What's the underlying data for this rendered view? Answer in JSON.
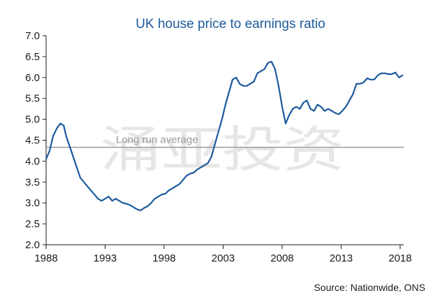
{
  "chart_data": {
    "type": "line",
    "title": "UK house price to earnings ratio",
    "xlabel": "",
    "ylabel": "",
    "x_tick_labels": [
      "1988",
      "1993",
      "1998",
      "2003",
      "2008",
      "2013",
      "2018"
    ],
    "y_tick_labels": [
      "2.0",
      "2.5",
      "3.0",
      "3.5",
      "4.0",
      "4.5",
      "5.0",
      "5.5",
      "6.0",
      "6.5",
      "7.0"
    ],
    "xlim": [
      1988,
      2018.3
    ],
    "ylim": [
      2.0,
      7.0
    ],
    "grid": false,
    "reference_line": {
      "label": "Long run average",
      "value": 4.33
    },
    "source": "Source: Nationwide, ONS",
    "watermark": "涌亚投资",
    "colors": {
      "series": "#1b5a9c",
      "reference": "#9a9a9a",
      "title": "#1b5a9c"
    },
    "series": [
      {
        "x": [
          1988.0,
          1988.3,
          1988.6,
          1988.9,
          1989.2,
          1989.5,
          1989.7,
          1990.0,
          1990.3,
          1990.6,
          1990.9,
          1991.2,
          1991.5,
          1991.8,
          1992.1,
          1992.4,
          1992.7,
          1993.0,
          1993.3,
          1993.6,
          1993.9,
          1994.2,
          1994.5,
          1994.8,
          1995.1,
          1995.4,
          1995.7,
          1996.0,
          1996.3,
          1996.6,
          1996.9,
          1997.2,
          1997.5,
          1997.8,
          1998.1,
          1998.4,
          1998.7,
          1999.0,
          1999.3,
          1999.6,
          1999.9,
          2000.2,
          2000.5,
          2000.8,
          2001.1,
          2001.4,
          2001.7,
          2002.0,
          2002.3,
          2002.6,
          2002.9,
          2003.2,
          2003.5,
          2003.8,
          2004.1,
          2004.4,
          2004.7,
          2005.0,
          2005.3,
          2005.6,
          2005.9,
          2006.2,
          2006.5,
          2006.8,
          2007.1,
          2007.4,
          2007.7,
          2008.0,
          2008.3,
          2008.6,
          2008.9,
          2009.2,
          2009.5,
          2009.8,
          2010.1,
          2010.4,
          2010.7,
          2011.0,
          2011.3,
          2011.6,
          2011.9,
          2012.2,
          2012.5,
          2012.8,
          2013.1,
          2013.4,
          2013.7,
          2014.0,
          2014.3,
          2014.6,
          2014.9,
          2015.2,
          2015.5,
          2015.8,
          2016.1,
          2016.4,
          2016.7,
          2017.0,
          2017.3,
          2017.6,
          2017.9,
          2018.2
        ],
        "values": [
          4.05,
          4.25,
          4.6,
          4.78,
          4.9,
          4.85,
          4.6,
          4.35,
          4.1,
          3.85,
          3.6,
          3.5,
          3.4,
          3.3,
          3.2,
          3.1,
          3.05,
          3.1,
          3.15,
          3.05,
          3.1,
          3.05,
          3.0,
          2.98,
          2.95,
          2.9,
          2.85,
          2.82,
          2.88,
          2.92,
          3.0,
          3.1,
          3.15,
          3.2,
          3.22,
          3.3,
          3.35,
          3.4,
          3.45,
          3.55,
          3.65,
          3.7,
          3.72,
          3.8,
          3.85,
          3.9,
          3.95,
          4.1,
          4.4,
          4.7,
          5.0,
          5.35,
          5.65,
          5.95,
          6.0,
          5.85,
          5.8,
          5.8,
          5.85,
          5.9,
          6.1,
          6.15,
          6.2,
          6.35,
          6.38,
          6.2,
          5.8,
          5.3,
          4.9,
          5.1,
          5.25,
          5.3,
          5.25,
          5.4,
          5.45,
          5.25,
          5.2,
          5.35,
          5.3,
          5.2,
          5.25,
          5.2,
          5.15,
          5.12,
          5.2,
          5.3,
          5.45,
          5.6,
          5.85,
          5.85,
          5.88,
          5.98,
          5.95,
          5.95,
          6.05,
          6.1,
          6.1,
          6.08,
          6.08,
          6.12,
          6.0,
          6.05
        ]
      }
    ]
  }
}
